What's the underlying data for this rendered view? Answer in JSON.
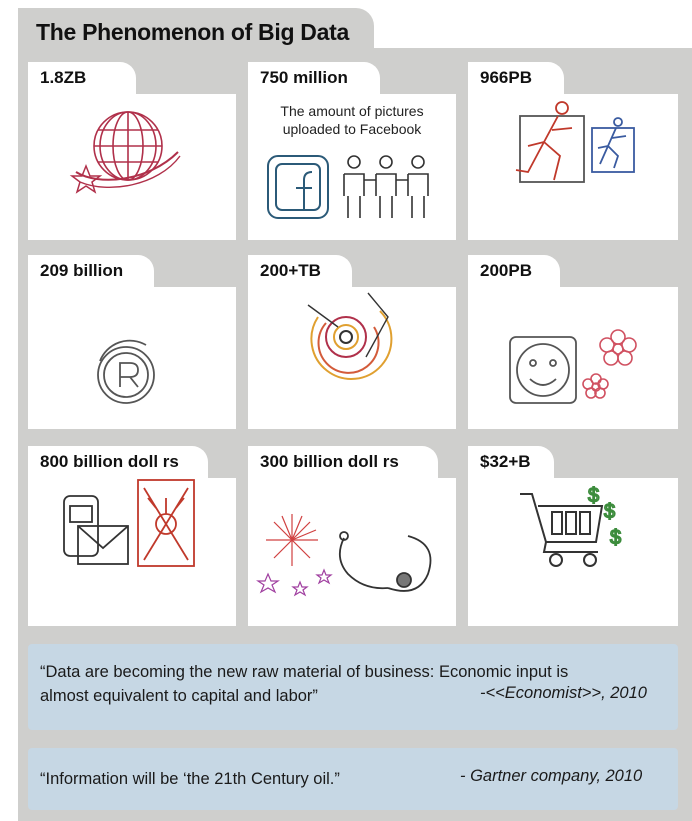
{
  "title": "The Phenomenon of Big Data",
  "cards": [
    {
      "label": "1.8ZB",
      "icon": "globe-icon"
    },
    {
      "label": "750 million",
      "caption_line1": "The amount of pictures",
      "caption_line2": "uploaded to Facebook",
      "icon": "facebook-people-icon"
    },
    {
      "label": "966PB",
      "icon": "running-figures-icon"
    },
    {
      "label": "209 billion",
      "icon": "registered-trademark-icon"
    },
    {
      "label": "200+TB",
      "icon": "concentric-circles-icon"
    },
    {
      "label": "200PB",
      "icon": "smiley-flowers-icon"
    },
    {
      "label": "800 billion doll  rs",
      "icon": "phone-mail-icon"
    },
    {
      "label": "300 billion doll  rs",
      "icon": "fireworks-stethoscope-icon"
    },
    {
      "label": "$32+B",
      "icon": "shopping-cart-icon"
    }
  ],
  "quotes": [
    {
      "line1": "“Data are becoming the new raw material of business: Economic input is",
      "line2": "almost equivalent to capital and labor”",
      "source": "-<<Economist>>, 2010"
    },
    {
      "line1": "“Information will be ‘the 21th Century oil.”",
      "source": "- Gartner company, 2010"
    }
  ],
  "colors": {
    "frame": "#cfcfcd",
    "quote_bg": "#c6d7e4",
    "globe": "#b0304a",
    "facebook": "#2b5a78",
    "red": "#c0392b",
    "blue": "#3a5ba0",
    "green": "#3c8c3c"
  }
}
